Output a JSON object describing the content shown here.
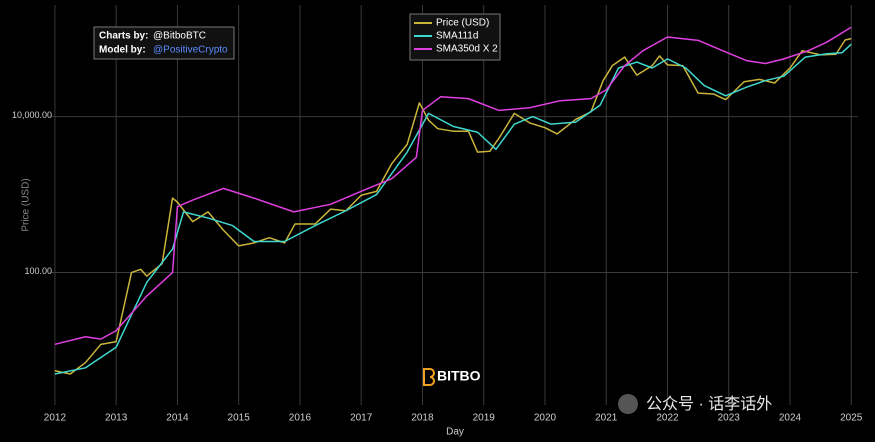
{
  "chart_data": {
    "type": "line",
    "x_label": "Day",
    "y_label": "Price (USD)",
    "log_y": true,
    "grid": true,
    "xlim": [
      2011.92,
      2025.11
    ],
    "xticks": [
      2012,
      2013,
      2014,
      2015,
      2016,
      2017,
      2018,
      2019,
      2020,
      2021,
      2022,
      2023,
      2024,
      2025
    ],
    "ylim": [
      2,
      270000
    ],
    "yticks": [
      {
        "value": 100,
        "label": "100.00"
      },
      {
        "value": 10000,
        "label": "10,000.00"
      }
    ],
    "credits": {
      "charts_label": "Charts by:",
      "charts_value": "@BitboBTC",
      "model_label": "Model by:",
      "model_value": "@PositiveCrypto"
    },
    "watermark": "BITBO",
    "series": [
      {
        "name": "Price (USD)",
        "color": "#c9b53c",
        "x": [
          2012.0,
          2012.25,
          2012.5,
          2012.75,
          2013.0,
          2013.25,
          2013.4,
          2013.5,
          2013.75,
          2013.92,
          2014.0,
          2014.25,
          2014.5,
          2014.75,
          2015.0,
          2015.25,
          2015.5,
          2015.75,
          2015.92,
          2016.25,
          2016.5,
          2016.75,
          2017.0,
          2017.25,
          2017.5,
          2017.75,
          2017.95,
          2018.1,
          2018.25,
          2018.5,
          2018.75,
          2018.9,
          2019.1,
          2019.25,
          2019.5,
          2019.75,
          2020.0,
          2020.2,
          2020.5,
          2020.75,
          2020.95,
          2021.1,
          2021.3,
          2021.5,
          2021.75,
          2021.87,
          2022.0,
          2022.25,
          2022.5,
          2022.75,
          2022.95,
          2023.25,
          2023.5,
          2023.75,
          2024.0,
          2024.2,
          2024.5,
          2024.75,
          2024.9,
          2025.0
        ],
        "values": [
          5.5,
          5,
          7,
          12,
          13,
          100,
          110,
          90,
          130,
          900,
          800,
          450,
          600,
          350,
          220,
          240,
          280,
          240,
          420,
          420,
          650,
          620,
          980,
          1100,
          2500,
          4400,
          15000,
          9000,
          7000,
          6500,
          6500,
          3500,
          3600,
          5300,
          11000,
          8300,
          7200,
          6000,
          9200,
          11500,
          29000,
          45000,
          58000,
          34000,
          45000,
          60000,
          46000,
          45000,
          20000,
          19500,
          16500,
          28000,
          30000,
          27000,
          42000,
          70000,
          62000,
          63000,
          96000,
          100000
        ]
      },
      {
        "name": "SMA111d",
        "color": "#3fd8cf",
        "x": [
          2012.0,
          2012.5,
          2013.0,
          2013.5,
          2013.92,
          2014.1,
          2014.5,
          2014.9,
          2015.25,
          2015.75,
          2016.25,
          2016.75,
          2017.25,
          2017.75,
          2018.1,
          2018.5,
          2018.9,
          2019.2,
          2019.5,
          2019.8,
          2020.1,
          2020.5,
          2020.9,
          2021.2,
          2021.5,
          2021.75,
          2022.0,
          2022.3,
          2022.6,
          2022.95,
          2023.3,
          2023.6,
          2023.9,
          2024.25,
          2024.6,
          2024.85,
          2025.0
        ],
        "values": [
          5,
          6,
          11,
          75,
          200,
          600,
          500,
          400,
          250,
          250,
          400,
          620,
          1000,
          3500,
          11000,
          7500,
          6300,
          3800,
          8000,
          10000,
          8000,
          8500,
          14000,
          42000,
          50000,
          42000,
          55000,
          42000,
          25000,
          18500,
          24000,
          29000,
          33000,
          58000,
          64000,
          66000,
          85000
        ]
      },
      {
        "name": "SMA350d X 2",
        "color": "#e040e0",
        "x": [
          2012.0,
          2012.5,
          2012.75,
          2013.0,
          2013.5,
          2013.92,
          2014.0,
          2014.25,
          2014.75,
          2015.25,
          2015.9,
          2016.5,
          2017.0,
          2017.5,
          2017.9,
          2018.0,
          2018.3,
          2018.75,
          2019.25,
          2019.75,
          2020.25,
          2020.75,
          2021.0,
          2021.3,
          2021.6,
          2022.0,
          2022.5,
          2022.9,
          2023.3,
          2023.6,
          2023.9,
          2024.3,
          2024.6,
          2025.0
        ],
        "values": [
          12,
          15,
          14,
          18,
          50,
          100,
          700,
          850,
          1200,
          900,
          600,
          750,
          1100,
          1600,
          3000,
          12000,
          18000,
          17000,
          12000,
          13000,
          16000,
          17000,
          22000,
          45000,
          70000,
          105000,
          95000,
          70000,
          52000,
          48000,
          55000,
          70000,
          90000,
          140000
        ]
      }
    ]
  },
  "overlay_text": "公众号 · 话李话外"
}
